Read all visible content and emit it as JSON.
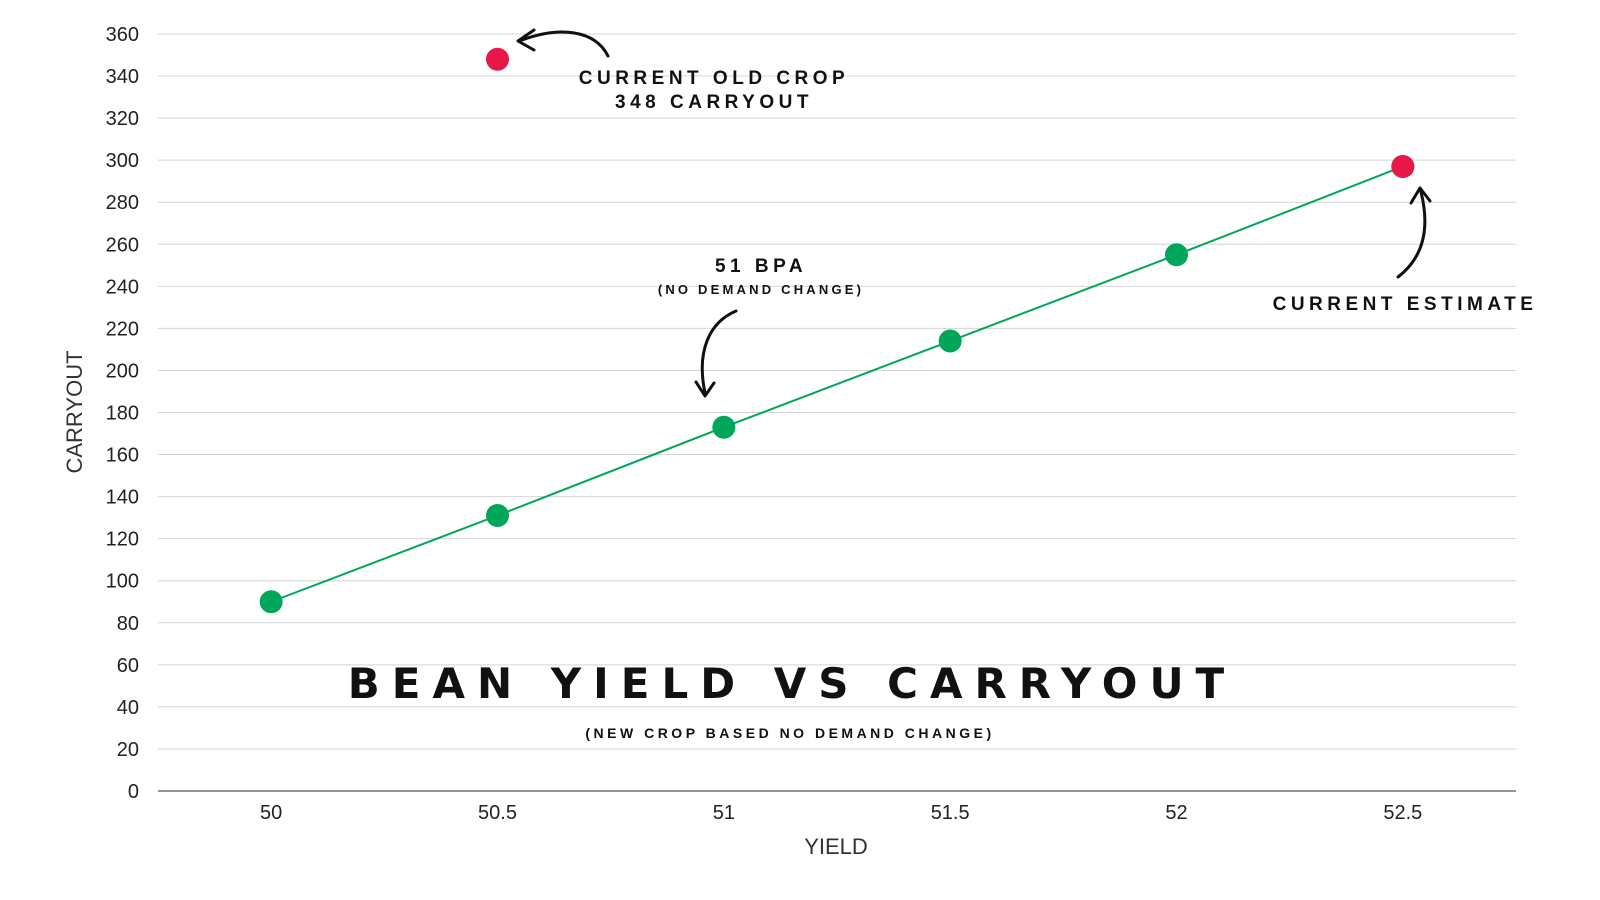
{
  "chart_data": {
    "type": "scatter",
    "title": "BEAN YIELD VS CARRYOUT",
    "subtitle": "(NEW CROP BASED NO DEMAND CHANGE)",
    "xlabel": "YIELD",
    "ylabel": "CARRYOUT",
    "xlim": [
      49.75,
      52.75
    ],
    "ylim": [
      0,
      360
    ],
    "x_ticks": [
      "50",
      "50.5",
      "51",
      "51.5",
      "52",
      "52.5"
    ],
    "y_ticks": [
      "0",
      "20",
      "40",
      "60",
      "80",
      "100",
      "120",
      "140",
      "160",
      "180",
      "200",
      "220",
      "240",
      "260",
      "280",
      "300",
      "320",
      "340",
      "360"
    ],
    "grid": true,
    "series": [
      {
        "name": "New crop carryout",
        "color": "#00a65a",
        "line": true,
        "x": [
          50,
          50.5,
          51,
          51.5,
          52,
          52.5
        ],
        "y": [
          90,
          131,
          173,
          214,
          255,
          297
        ]
      },
      {
        "name": "Highlighted points",
        "color": "#e8174a",
        "line": false,
        "x": [
          50.5,
          52.5
        ],
        "y": [
          348,
          297
        ]
      }
    ],
    "annotations": [
      {
        "lines": [
          "CURRENT OLD CROP",
          "348 CARRYOUT"
        ]
      },
      {
        "lines": [
          "51 BPA",
          "(NO DEMAND CHANGE)"
        ]
      },
      {
        "lines": [
          "CURRENT ESTIMATE"
        ]
      }
    ]
  }
}
